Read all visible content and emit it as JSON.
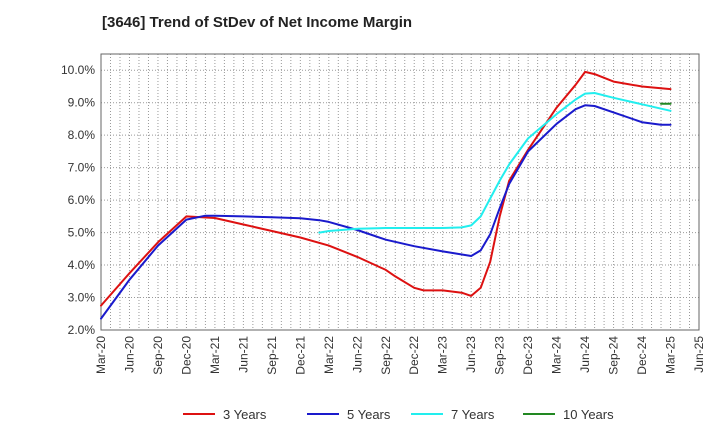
{
  "chart_data": {
    "type": "line",
    "title": "[3646]  Trend of StDev of Net Income Margin",
    "xlabel": "",
    "ylabel": "",
    "ylim": [
      2.0,
      10.5
    ],
    "yticks": [
      2.0,
      3.0,
      4.0,
      5.0,
      6.0,
      7.0,
      8.0,
      9.0,
      10.0
    ],
    "ytick_labels": [
      "2.0%",
      "3.0%",
      "4.0%",
      "5.0%",
      "6.0%",
      "7.0%",
      "8.0%",
      "9.0%",
      "10.0%"
    ],
    "xtick_labels": [
      "Mar-20",
      "Jun-20",
      "Sep-20",
      "Dec-20",
      "Mar-21",
      "Jun-21",
      "Sep-21",
      "Dec-21",
      "Mar-22",
      "Jun-22",
      "Sep-22",
      "Dec-22",
      "Mar-23",
      "Jun-23",
      "Sep-23",
      "Dec-23",
      "Mar-24",
      "Jun-24",
      "Sep-24",
      "Dec-24",
      "Mar-25",
      "Jun-25"
    ],
    "grid": true,
    "legend_position": "bottom",
    "series": [
      {
        "name": "3 Years",
        "color": "#dd1111",
        "points": [
          [
            "Mar-20",
            2.75
          ],
          [
            "Jun-20",
            3.75
          ],
          [
            "Sep-20",
            4.7
          ],
          [
            "Dec-20",
            5.5
          ],
          [
            "Mar-21",
            5.45
          ],
          [
            "Jun-21",
            5.25
          ],
          [
            "Sep-21",
            5.05
          ],
          [
            "Dec-21",
            4.85
          ],
          [
            "Mar-22",
            4.6
          ],
          [
            "Jun-22",
            4.25
          ],
          [
            "Sep-22",
            3.85
          ],
          [
            "Oct-22",
            3.65
          ],
          [
            "Dec-22",
            3.3
          ],
          [
            "Jan-23",
            3.22
          ],
          [
            "Mar-23",
            3.22
          ],
          [
            "May-23",
            3.15
          ],
          [
            "Jun-23",
            3.05
          ],
          [
            "Jul-23",
            3.3
          ],
          [
            "Aug-23",
            4.1
          ],
          [
            "Sep-23",
            5.5
          ],
          [
            "Oct-23",
            6.6
          ],
          [
            "Dec-23",
            7.55
          ],
          [
            "Mar-24",
            8.85
          ],
          [
            "May-24",
            9.55
          ],
          [
            "Jun-24",
            9.95
          ],
          [
            "Jul-24",
            9.88
          ],
          [
            "Sep-24",
            9.65
          ],
          [
            "Dec-24",
            9.5
          ],
          [
            "Mar-25",
            9.42
          ]
        ]
      },
      {
        "name": "5 Years",
        "color": "#1a1acc",
        "points": [
          [
            "Mar-20",
            2.35
          ],
          [
            "Jun-20",
            3.55
          ],
          [
            "Sep-20",
            4.6
          ],
          [
            "Dec-20",
            5.4
          ],
          [
            "Feb-21",
            5.52
          ],
          [
            "Mar-21",
            5.52
          ],
          [
            "Jun-21",
            5.5
          ],
          [
            "Sep-21",
            5.47
          ],
          [
            "Dec-21",
            5.44
          ],
          [
            "Feb-22",
            5.38
          ],
          [
            "Mar-22",
            5.33
          ],
          [
            "Jun-22",
            5.08
          ],
          [
            "Sep-22",
            4.78
          ],
          [
            "Dec-22",
            4.58
          ],
          [
            "Mar-23",
            4.42
          ],
          [
            "Jun-23",
            4.28
          ],
          [
            "Jul-23",
            4.45
          ],
          [
            "Aug-23",
            4.95
          ],
          [
            "Sep-23",
            5.75
          ],
          [
            "Oct-23",
            6.5
          ],
          [
            "Dec-23",
            7.5
          ],
          [
            "Mar-24",
            8.35
          ],
          [
            "May-24",
            8.8
          ],
          [
            "Jun-24",
            8.92
          ],
          [
            "Jul-24",
            8.9
          ],
          [
            "Sep-24",
            8.7
          ],
          [
            "Dec-24",
            8.4
          ],
          [
            "Feb-25",
            8.32
          ],
          [
            "Mar-25",
            8.32
          ]
        ]
      },
      {
        "name": "7 Years",
        "color": "#22eeee",
        "points": [
          [
            "Feb-22",
            5.0
          ],
          [
            "Mar-22",
            5.05
          ],
          [
            "Jun-22",
            5.12
          ],
          [
            "Sep-22",
            5.14
          ],
          [
            "Dec-22",
            5.14
          ],
          [
            "Mar-23",
            5.14
          ],
          [
            "May-23",
            5.16
          ],
          [
            "Jun-23",
            5.22
          ],
          [
            "Jul-23",
            5.5
          ],
          [
            "Aug-23",
            6.05
          ],
          [
            "Sep-23",
            6.6
          ],
          [
            "Oct-23",
            7.1
          ],
          [
            "Dec-23",
            7.9
          ],
          [
            "Mar-24",
            8.65
          ],
          [
            "May-24",
            9.1
          ],
          [
            "Jun-24",
            9.28
          ],
          [
            "Jul-24",
            9.3
          ],
          [
            "Sep-24",
            9.15
          ],
          [
            "Dec-24",
            8.95
          ],
          [
            "Mar-25",
            8.75
          ]
        ]
      },
      {
        "name": "10 Years",
        "color": "#228822",
        "points": [
          [
            "Feb-25",
            8.97
          ],
          [
            "Mar-25",
            8.97
          ]
        ]
      }
    ]
  }
}
